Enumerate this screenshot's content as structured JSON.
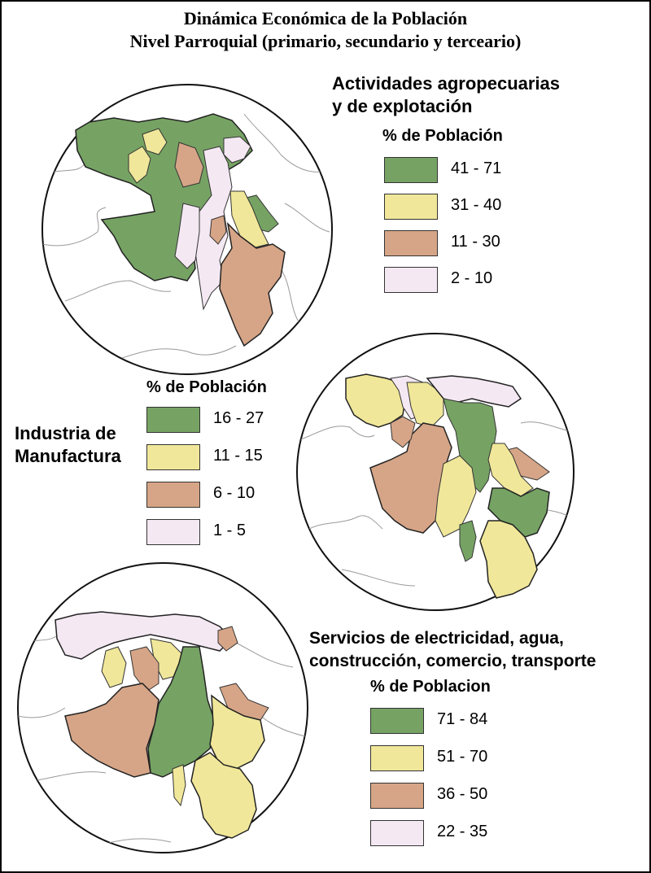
{
  "title": {
    "line1": "Dinámica Económica de la Población",
    "line2": "Nivel Parroquial (primario, secundario y terceario)"
  },
  "colors": {
    "green": "#76a364",
    "yellow": "#f0e79a",
    "tan": "#d6a587",
    "pink": "#f4e8f3",
    "boundary": "#9a9a9a",
    "outline": "#111111"
  },
  "maps": {
    "primary": {
      "title_line1": "Actividades agropecuarias",
      "title_line2": "y de explotación",
      "legend_title": "% de Población",
      "legend": [
        {
          "label": "41 - 71",
          "color": "#76a364"
        },
        {
          "label": "31 - 40",
          "color": "#f0e79a"
        },
        {
          "label": "11 - 30",
          "color": "#d6a587"
        },
        {
          "label": "2 - 10",
          "color": "#f4e8f3"
        }
      ]
    },
    "secondary": {
      "title_line1": "Industria de",
      "title_line2": "Manufactura",
      "legend_title": "% de Población",
      "legend": [
        {
          "label": "16 - 27",
          "color": "#76a364"
        },
        {
          "label": "11 - 15",
          "color": "#f0e79a"
        },
        {
          "label": "6 - 10",
          "color": "#d6a587"
        },
        {
          "label": "1 - 5",
          "color": "#f4e8f3"
        }
      ]
    },
    "tertiary": {
      "title_line1": "Servicios de electricidad, agua,",
      "title_line2": "construcción, comercio, transporte",
      "legend_title": "% de Poblacion",
      "legend": [
        {
          "label": "71 - 84",
          "color": "#76a364"
        },
        {
          "label": "51 - 70",
          "color": "#f0e79a"
        },
        {
          "label": "36 - 50",
          "color": "#d6a587"
        },
        {
          "label": "22 - 35",
          "color": "#f4e8f3"
        }
      ]
    }
  }
}
